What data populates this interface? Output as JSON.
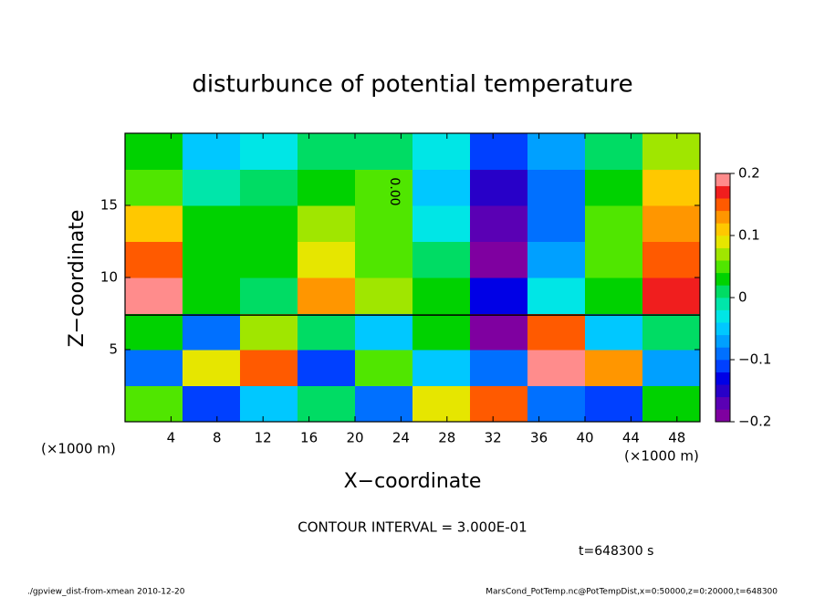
{
  "chart_data": {
    "type": "heatmap",
    "title": "disturbunce of potential temperature",
    "x_label": "X−coordinate",
    "y_label": "Z−coordinate",
    "x_unit": "(×1000 m)",
    "x_unit_right": "(×1000 m)",
    "contour_interval": "CONTOUR INTERVAL = 3.000E-01",
    "time_label": "t=648300 s",
    "annotations": [
      "0.00"
    ],
    "footer_left": "./gpview_dist-from-xmean  2010-12-20",
    "footer_right": "MarsCond_PotTemp.nc@PotTempDist,x=0:50000,z=0:20000,t=648300",
    "xlim": [
      0,
      50
    ],
    "ylim": [
      0,
      20
    ],
    "xticks": [
      4,
      8,
      12,
      16,
      20,
      24,
      28,
      32,
      36,
      40,
      44,
      48
    ],
    "yticks": [
      5,
      10,
      15
    ],
    "xbins": [
      0,
      5,
      10,
      15,
      20,
      25,
      30,
      35,
      40,
      45,
      50
    ],
    "ybins": [
      0,
      2.5,
      5,
      7.5,
      10,
      12.5,
      15,
      17.5,
      20
    ],
    "z": [
      [
        0.05,
        -0.12,
        -0.05,
        0.0,
        -0.1,
        0.08,
        0.15,
        -0.1,
        -0.12,
        0.02
      ],
      [
        -0.1,
        0.08,
        0.15,
        -0.12,
        0.05,
        -0.06,
        -0.1,
        0.2,
        0.12,
        -0.08
      ],
      [
        0.02,
        -0.1,
        0.06,
        0.0,
        -0.05,
        0.02,
        -0.2,
        0.15,
        -0.05,
        0.0
      ],
      [
        0.18,
        0.03,
        0.01,
        0.12,
        0.06,
        0.02,
        -0.14,
        -0.04,
        0.02,
        0.16
      ],
      [
        0.14,
        0.03,
        0.02,
        0.08,
        0.05,
        0.0,
        -0.2,
        -0.08,
        0.04,
        0.14
      ],
      [
        0.1,
        0.02,
        0.02,
        0.06,
        0.05,
        -0.03,
        -0.18,
        -0.1,
        0.04,
        0.13
      ],
      [
        0.04,
        -0.02,
        0.0,
        0.02,
        0.04,
        -0.05,
        -0.16,
        -0.1,
        0.02,
        0.1
      ],
      [
        0.02,
        -0.06,
        -0.04,
        0.0,
        0.01,
        -0.03,
        -0.12,
        -0.08,
        0.0,
        0.06
      ]
    ],
    "colorbar": {
      "levels": [
        -0.2,
        -0.18,
        -0.16,
        -0.14,
        -0.12,
        -0.1,
        -0.08,
        -0.06,
        -0.04,
        -0.02,
        0,
        0.02,
        0.04,
        0.06,
        0.08,
        0.1,
        0.12,
        0.14,
        0.16,
        0.18,
        0.2
      ],
      "colors": [
        "#7f00a0",
        "#5a00b4",
        "#2800c8",
        "#0000e6",
        "#0040ff",
        "#0070ff",
        "#00a0ff",
        "#00c8ff",
        "#00e6e6",
        "#00e6aa",
        "#00dc64",
        "#00d200",
        "#50e600",
        "#a0e600",
        "#e6e600",
        "#ffc800",
        "#ff9600",
        "#ff5a00",
        "#f01e1e",
        "#ff8c8c"
      ],
      "ticks": [
        {
          "value": -0.2,
          "label": "−0.2"
        },
        {
          "value": -0.1,
          "label": "−0.1"
        },
        0,
        0.1,
        0.2
      ]
    }
  }
}
